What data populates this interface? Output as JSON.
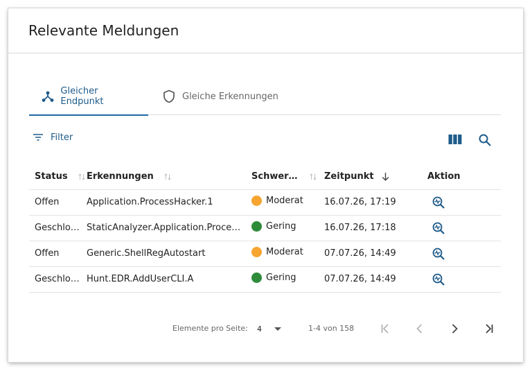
{
  "dialog": {
    "title": "Relevante Meldungen"
  },
  "tabs": [
    {
      "label": "Gleicher Endpunkt",
      "icon": "hub-icon",
      "active": true
    },
    {
      "label": "Gleiche Erkennungen",
      "icon": "shield-icon",
      "active": false
    }
  ],
  "toolbar": {
    "filter_label": "Filter",
    "columns_icon": "columns-icon",
    "search_icon": "search-icon"
  },
  "table": {
    "headers": {
      "status": "Status",
      "erkennungen": "Erkennungen",
      "schweregrad": "Schwer…",
      "zeitpunkt": "Zeitpunkt",
      "aktion": "Aktion"
    },
    "sorted_column": "zeitpunkt",
    "sort_direction": "descending",
    "rows": [
      {
        "status": "Offen",
        "erkennung": "Application.ProcessHacker.1",
        "schweregrad": "Moderat",
        "severity_color": "#f5a530",
        "zeitpunkt": "16.07.26, 17:19"
      },
      {
        "status": "Geschlo…",
        "erkennung": "StaticAnalyzer.Application.Proce…",
        "schweregrad": "Gering",
        "severity_color": "#2e8b3a",
        "zeitpunkt": "16.07.26, 17:18"
      },
      {
        "status": "Offen",
        "erkennung": "Generic.ShellRegAutostart",
        "schweregrad": "Moderat",
        "severity_color": "#f5a530",
        "zeitpunkt": "07.07.26, 14:49"
      },
      {
        "status": "Geschlo…",
        "erkennung": "Hunt.EDR.AddUserCLI.A",
        "schweregrad": "Gering",
        "severity_color": "#2e8b3a",
        "zeitpunkt": "07.07.26, 14:49"
      }
    ]
  },
  "paginator": {
    "items_per_page_label": "Elemente pro Seite:",
    "items_per_page": "4",
    "range_label": "1-4 von 158"
  },
  "colors": {
    "accent": "#1e5b8a",
    "moderat": "#f5a530",
    "gering": "#2e8b3a"
  }
}
